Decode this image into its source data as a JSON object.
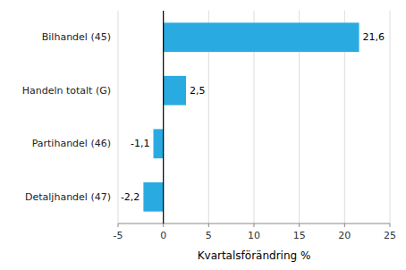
{
  "chart_data": {
    "type": "bar",
    "orientation": "horizontal",
    "categories": [
      "Detaljhandel (47)",
      "Partihandel (46)",
      "Handeln totalt (G)",
      "Bilhandel (45)"
    ],
    "values": [
      -2.2,
      -1.1,
      2.5,
      21.6
    ],
    "value_labels": [
      "-2,2",
      "-1,1",
      "2,5",
      "21,6"
    ],
    "data_labels": true,
    "color": "#29abe2",
    "xlabel": "Kvartalsförändring %",
    "xlim": [
      -5,
      25
    ],
    "xticks": [
      -5,
      0,
      5,
      10,
      15,
      20,
      25
    ],
    "grid": true
  }
}
